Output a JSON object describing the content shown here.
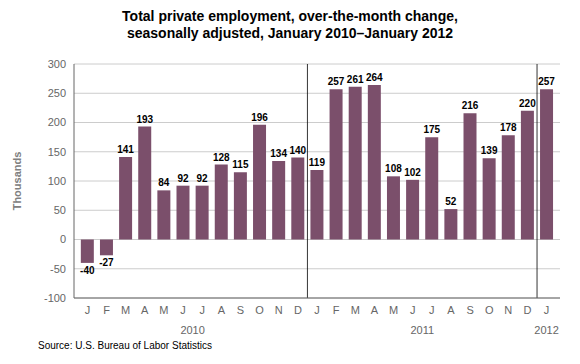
{
  "chart_data": {
    "type": "bar",
    "title": "Total private employment, over-the-month change,\nseasonally adjusted, January 2010–January 2012",
    "ylabel": "Thousands",
    "source": "Source: U.S. Bureau of Labor Statistics",
    "categories": [
      "J",
      "F",
      "M",
      "A",
      "M",
      "J",
      "J",
      "A",
      "S",
      "O",
      "N",
      "D",
      "J",
      "F",
      "M",
      "A",
      "M",
      "J",
      "J",
      "A",
      "S",
      "O",
      "N",
      "D",
      "J"
    ],
    "values": [
      -40,
      -27,
      141,
      193,
      84,
      92,
      92,
      128,
      115,
      196,
      134,
      140,
      119,
      257,
      261,
      264,
      108,
      102,
      175,
      52,
      216,
      139,
      178,
      220,
      257
    ],
    "color": "#7B4F6B",
    "ylim": [
      -100,
      300
    ],
    "yticks": [
      -100,
      -50,
      0,
      50,
      100,
      150,
      200,
      250,
      300
    ],
    "grid": true,
    "data_labels": true,
    "annotations": [
      {
        "text": "2010",
        "x": 5.5
      },
      {
        "text": "2011",
        "x": 17.5
      },
      {
        "text": "2012",
        "x": 24
      }
    ],
    "vlines": [
      11.5,
      23.5
    ]
  }
}
